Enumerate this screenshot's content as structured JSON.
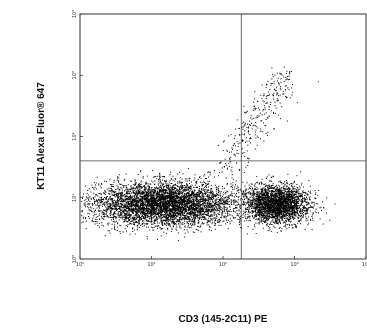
{
  "chart_data": {
    "type": "scatter",
    "xlabel": "CD3 (145-2C11) PE",
    "ylabel": "KT11 Alexa Fluor® 647",
    "x_scale": "log",
    "y_scale": "log",
    "xlim": [
      1,
      10000
    ],
    "ylim": [
      1,
      10000
    ],
    "x_ticks": [
      "10⁰",
      "10¹",
      "10²",
      "10³",
      "10⁴"
    ],
    "y_ticks": [
      "10⁰",
      "10¹",
      "10²",
      "10³",
      "10⁴"
    ],
    "gates": {
      "x": 180,
      "y": 40
    },
    "populations": [
      {
        "label": "CD3- KT11-",
        "x_center": 15,
        "y_center": 8,
        "x_spread": 1.0,
        "y_spread": 0.35,
        "density": "very high"
      },
      {
        "label": "CD3+ KT11-",
        "x_center": 550,
        "y_center": 8,
        "x_spread": 0.45,
        "y_spread": 0.3,
        "density": "high"
      },
      {
        "label": "diagonal",
        "x_from": 80,
        "y_from": 20,
        "x_to": 800,
        "y_to": 1000,
        "density": "low"
      }
    ],
    "colors": {
      "points": "#000000",
      "gate_lines": "#444444",
      "frame": "#000000",
      "background": "#ffffff"
    }
  }
}
